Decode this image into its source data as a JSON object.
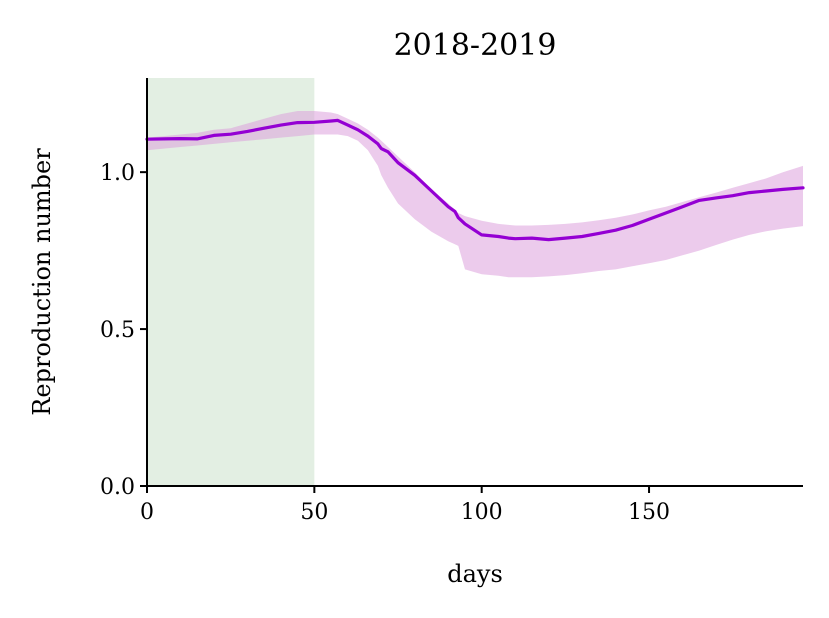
{
  "chart_data": {
    "type": "line",
    "title": "2018-2019",
    "xlabel": "days",
    "ylabel": "Reproduction number",
    "xlim": [
      0,
      196
    ],
    "ylim": [
      0,
      1.3
    ],
    "xticks": [
      0,
      50,
      100,
      150
    ],
    "xtick_labels": [
      "0",
      "50",
      "100",
      "150"
    ],
    "yticks": [
      0.0,
      0.5,
      1.0
    ],
    "ytick_labels": [
      "0.0",
      "0.5",
      "1.0"
    ],
    "grid": false,
    "colors": {
      "line": "#9400d3",
      "band": "#dda0dd",
      "shaded_region": "#e3efe3"
    },
    "shaded_region": {
      "x_start": 0,
      "x_end": 50
    },
    "series": [
      {
        "x": [
          0,
          5,
          10,
          15,
          20,
          25,
          30,
          35,
          40,
          45,
          50,
          55,
          57,
          60,
          63,
          66,
          69,
          70,
          72,
          75,
          80,
          85,
          90,
          92,
          93,
          95,
          100,
          105,
          108,
          110,
          115,
          120,
          125,
          130,
          135,
          140,
          145,
          150,
          155,
          160,
          165,
          170,
          175,
          180,
          185,
          190,
          196
        ],
        "y": [
          1.105,
          1.106,
          1.107,
          1.106,
          1.117,
          1.121,
          1.13,
          1.14,
          1.15,
          1.158,
          1.159,
          1.163,
          1.165,
          1.15,
          1.135,
          1.115,
          1.09,
          1.075,
          1.065,
          1.03,
          0.99,
          0.94,
          0.89,
          0.875,
          0.855,
          0.835,
          0.8,
          0.795,
          0.79,
          0.788,
          0.79,
          0.785,
          0.79,
          0.795,
          0.805,
          0.815,
          0.83,
          0.85,
          0.87,
          0.89,
          0.91,
          0.918,
          0.925,
          0.935,
          0.94,
          0.945,
          0.95
        ],
        "lower": [
          1.07,
          1.075,
          1.08,
          1.085,
          1.09,
          1.095,
          1.1,
          1.105,
          1.11,
          1.115,
          1.12,
          1.12,
          1.12,
          1.115,
          1.1,
          1.07,
          1.02,
          0.99,
          0.95,
          0.9,
          0.85,
          0.81,
          0.78,
          0.77,
          0.765,
          0.69,
          0.675,
          0.67,
          0.665,
          0.665,
          0.665,
          0.668,
          0.672,
          0.678,
          0.685,
          0.69,
          0.7,
          0.71,
          0.72,
          0.735,
          0.75,
          0.768,
          0.785,
          0.8,
          0.812,
          0.82,
          0.828
        ],
        "upper": [
          1.11,
          1.115,
          1.12,
          1.125,
          1.135,
          1.14,
          1.155,
          1.17,
          1.185,
          1.195,
          1.195,
          1.19,
          1.185,
          1.17,
          1.155,
          1.135,
          1.11,
          1.1,
          1.08,
          1.05,
          1.0,
          0.945,
          0.9,
          0.88,
          0.87,
          0.86,
          0.845,
          0.835,
          0.832,
          0.83,
          0.83,
          0.832,
          0.835,
          0.84,
          0.847,
          0.855,
          0.865,
          0.878,
          0.89,
          0.905,
          0.92,
          0.935,
          0.95,
          0.965,
          0.98,
          1.0,
          1.02
        ]
      }
    ]
  }
}
